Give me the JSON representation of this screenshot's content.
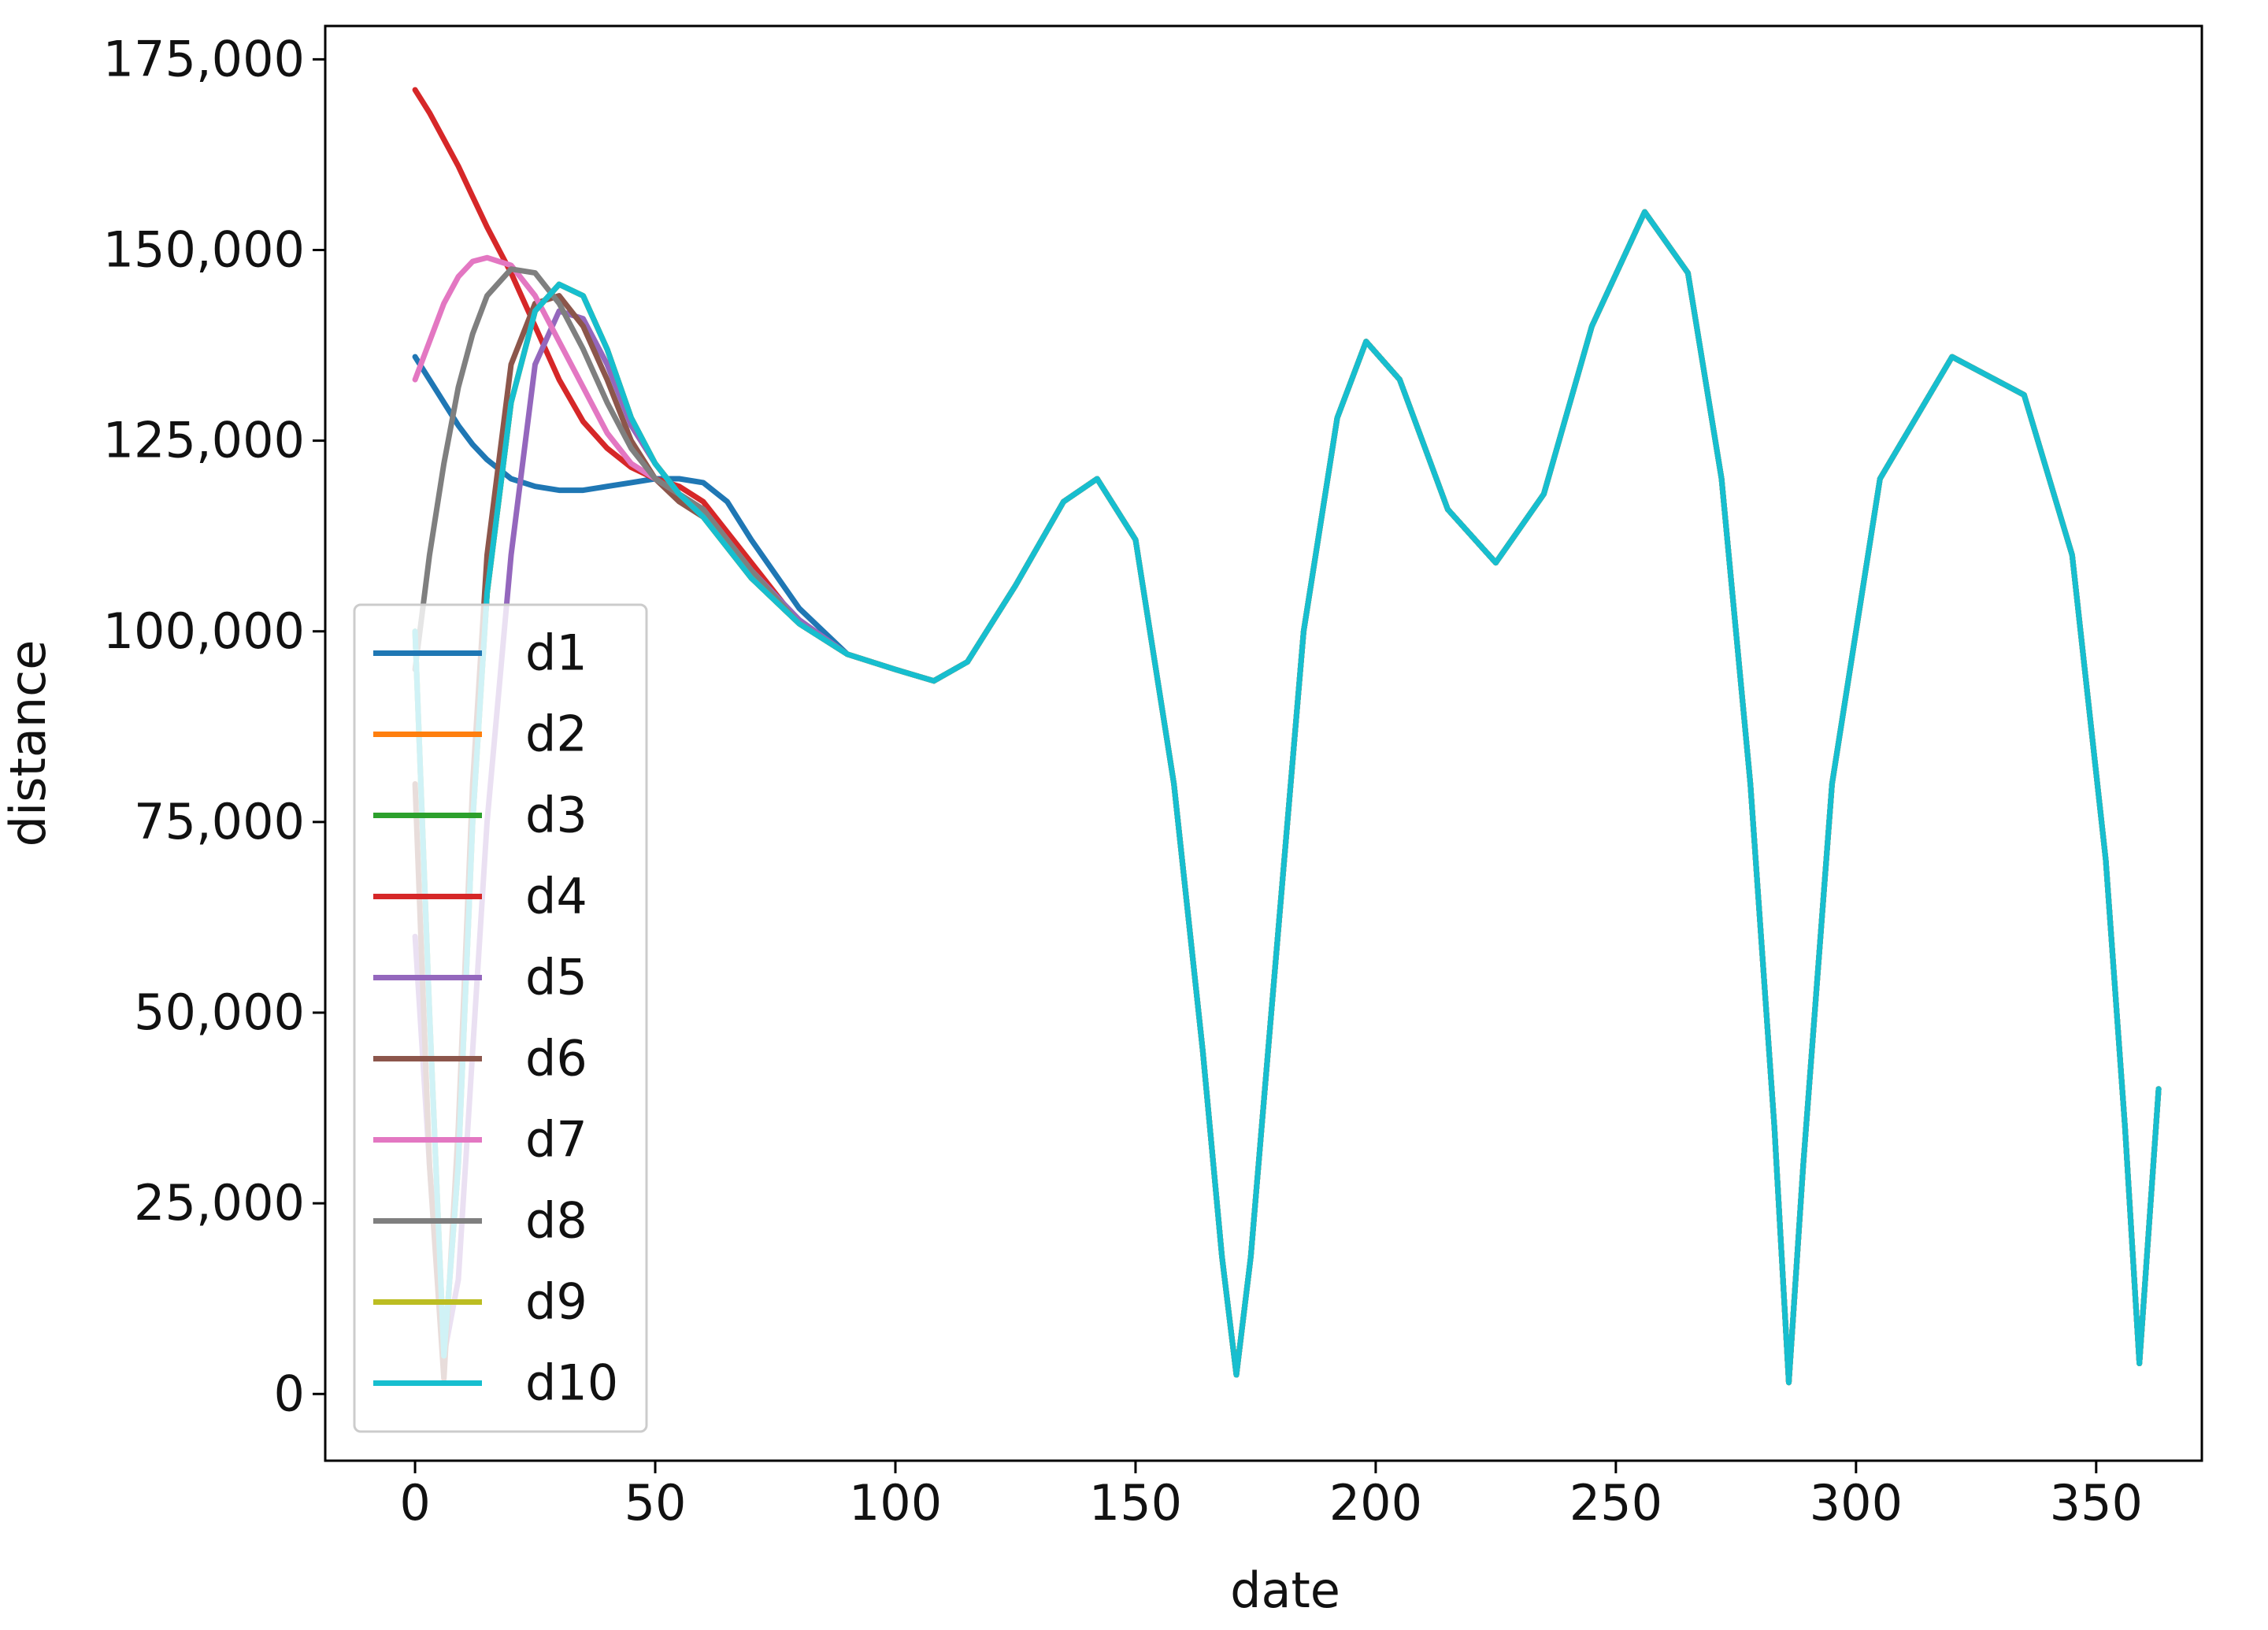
{
  "chart_data": {
    "type": "line",
    "x_label": "date",
    "y_label": "distance",
    "x": [
      0,
      3,
      6,
      9,
      12,
      15,
      20,
      25,
      30,
      35,
      40,
      45,
      50,
      55,
      60,
      65,
      70,
      80,
      90,
      100,
      108,
      115,
      125,
      135,
      142,
      150,
      158,
      164,
      168,
      171,
      174,
      178,
      185,
      192,
      198,
      205,
      215,
      225,
      235,
      245,
      256,
      265,
      272,
      278,
      283,
      286,
      289,
      295,
      305,
      320,
      335,
      345,
      352,
      356,
      359,
      363
    ],
    "series": [
      {
        "name": "d1",
        "color": "#1f77b4",
        "values": [
          136000,
          133000,
          130000,
          127000,
          124500,
          122500,
          120000,
          119000,
          118500,
          118500,
          119000,
          119500,
          120000,
          120000,
          119500,
          117000,
          112000,
          103000,
          97000,
          95000,
          93500,
          96000,
          106000,
          117000,
          120000,
          112000,
          80000,
          45000,
          18000,
          2500,
          18000,
          48000,
          100000,
          128000,
          138000,
          133000,
          116000,
          109000,
          118000,
          140000,
          155000,
          147000,
          120000,
          80000,
          35000,
          1500,
          30000,
          80000,
          120000,
          136000,
          131000,
          110000,
          70000,
          35000,
          4000,
          40000
        ]
      },
      {
        "name": "d2",
        "color": "#ff7f0e",
        "values": [
          100000,
          50000,
          5000,
          30000,
          75000,
          105000,
          130000,
          142000,
          145500,
          144000,
          137000,
          128000,
          122000,
          118000,
          115000,
          111000,
          107000,
          101000,
          97000,
          95000,
          93500,
          96000,
          106000,
          117000,
          120000,
          112000,
          80000,
          45000,
          18000,
          2500,
          18000,
          48000,
          100000,
          128000,
          138000,
          133000,
          116000,
          109000,
          118000,
          140000,
          155000,
          147000,
          120000,
          80000,
          35000,
          1500,
          30000,
          80000,
          120000,
          136000,
          131000,
          110000,
          70000,
          35000,
          4000,
          40000
        ]
      },
      {
        "name": "d3",
        "color": "#2ca02c",
        "values": [
          100000,
          50000,
          5000,
          30000,
          75000,
          105000,
          130000,
          142000,
          145500,
          144000,
          137000,
          128000,
          122000,
          118000,
          115000,
          111000,
          107000,
          101000,
          97000,
          95000,
          93500,
          96000,
          106000,
          117000,
          120000,
          112000,
          80000,
          45000,
          18000,
          2500,
          18000,
          48000,
          100000,
          128000,
          138000,
          133000,
          116000,
          109000,
          118000,
          140000,
          155000,
          147000,
          120000,
          80000,
          35000,
          1500,
          30000,
          80000,
          120000,
          136000,
          131000,
          110000,
          70000,
          35000,
          4000,
          40000
        ]
      },
      {
        "name": "d4",
        "color": "#d62728",
        "values": [
          171000,
          168000,
          164500,
          161000,
          157000,
          153000,
          147000,
          140000,
          133000,
          127500,
          124000,
          121500,
          120000,
          119000,
          117000,
          113000,
          109000,
          101000,
          97000,
          95000,
          93500,
          96000,
          106000,
          117000,
          120000,
          112000,
          80000,
          45000,
          18000,
          2500,
          18000,
          48000,
          100000,
          128000,
          138000,
          133000,
          116000,
          109000,
          118000,
          140000,
          155000,
          147000,
          120000,
          80000,
          35000,
          1500,
          30000,
          80000,
          120000,
          136000,
          131000,
          110000,
          70000,
          35000,
          4000,
          40000
        ]
      },
      {
        "name": "d5",
        "color": "#9467bd",
        "values": [
          60000,
          30000,
          5000,
          15000,
          45000,
          75000,
          110000,
          135000,
          142000,
          141000,
          135000,
          127000,
          122000,
          118000,
          116000,
          112000,
          108000,
          101500,
          97000,
          95000,
          93500,
          96000,
          106000,
          117000,
          120000,
          112000,
          80000,
          45000,
          18000,
          2500,
          18000,
          48000,
          100000,
          128000,
          138000,
          133000,
          116000,
          109000,
          118000,
          140000,
          155000,
          147000,
          120000,
          80000,
          35000,
          1500,
          30000,
          80000,
          120000,
          136000,
          131000,
          110000,
          70000,
          35000,
          4000,
          40000
        ]
      },
      {
        "name": "d6",
        "color": "#8c564b",
        "values": [
          80000,
          30000,
          2000,
          35000,
          80000,
          110000,
          135000,
          143000,
          144000,
          140000,
          133000,
          125000,
          120000,
          117000,
          115000,
          111000,
          107000,
          101000,
          97000,
          95000,
          93500,
          96000,
          106000,
          117000,
          120000,
          112000,
          80000,
          45000,
          18000,
          2500,
          18000,
          48000,
          100000,
          128000,
          138000,
          133000,
          116000,
          109000,
          118000,
          140000,
          155000,
          147000,
          120000,
          80000,
          35000,
          1500,
          30000,
          80000,
          120000,
          136000,
          131000,
          110000,
          70000,
          35000,
          4000,
          40000
        ]
      },
      {
        "name": "d7",
        "color": "#e377c2",
        "values": [
          133000,
          138000,
          143000,
          146500,
          148500,
          149000,
          148000,
          144000,
          138000,
          132000,
          126000,
          122000,
          120000,
          118000,
          116000,
          112000,
          108000,
          101000,
          97000,
          95000,
          93500,
          96000,
          106000,
          117000,
          120000,
          112000,
          80000,
          45000,
          18000,
          2500,
          18000,
          48000,
          100000,
          128000,
          138000,
          133000,
          116000,
          109000,
          118000,
          140000,
          155000,
          147000,
          120000,
          80000,
          35000,
          1500,
          30000,
          80000,
          120000,
          136000,
          131000,
          110000,
          70000,
          35000,
          4000,
          40000
        ]
      },
      {
        "name": "d8",
        "color": "#7f7f7f",
        "values": [
          95000,
          110000,
          122000,
          132000,
          139000,
          144000,
          147500,
          147000,
          143000,
          137000,
          130000,
          124000,
          120000,
          118000,
          116000,
          112000,
          108000,
          101000,
          97000,
          95000,
          93500,
          96000,
          106000,
          117000,
          120000,
          112000,
          80000,
          45000,
          18000,
          2500,
          18000,
          48000,
          100000,
          128000,
          138000,
          133000,
          116000,
          109000,
          118000,
          140000,
          155000,
          147000,
          120000,
          80000,
          35000,
          1500,
          30000,
          80000,
          120000,
          136000,
          131000,
          110000,
          70000,
          35000,
          4000,
          40000
        ]
      },
      {
        "name": "d9",
        "color": "#bcbd22",
        "values": [
          100000,
          50000,
          5000,
          30000,
          75000,
          105000,
          130000,
          142000,
          145500,
          144000,
          137000,
          128000,
          122000,
          118000,
          115000,
          111000,
          107000,
          101000,
          97000,
          95000,
          93500,
          96000,
          106000,
          117000,
          120000,
          112000,
          80000,
          45000,
          18000,
          2500,
          18000,
          48000,
          100000,
          128000,
          138000,
          133000,
          116000,
          109000,
          118000,
          140000,
          155000,
          147000,
          120000,
          80000,
          35000,
          1500,
          30000,
          80000,
          120000,
          136000,
          131000,
          110000,
          70000,
          35000,
          4000,
          40000
        ]
      },
      {
        "name": "d10",
        "color": "#17becf",
        "values": [
          100000,
          50000,
          5000,
          30000,
          75000,
          105000,
          130000,
          142000,
          145500,
          144000,
          137000,
          128000,
          122000,
          118000,
          115000,
          111000,
          107000,
          101000,
          97000,
          95000,
          93500,
          96000,
          106000,
          117000,
          120000,
          112000,
          80000,
          45000,
          18000,
          2500,
          18000,
          48000,
          100000,
          128000,
          138000,
          133000,
          116000,
          109000,
          118000,
          140000,
          155000,
          147000,
          120000,
          80000,
          35000,
          1500,
          30000,
          80000,
          120000,
          136000,
          131000,
          110000,
          70000,
          35000,
          4000,
          40000
        ]
      }
    ],
    "xlim": [
      -18.7,
      372
    ],
    "xticks": [
      0,
      50,
      100,
      150,
      200,
      250,
      300,
      350
    ],
    "ylim": [
      -8750,
      179375
    ],
    "yticks": [
      0,
      {
        "value": 25000,
        "label": "25,000"
      },
      {
        "value": 50000,
        "label": "50,000"
      },
      {
        "value": 75000,
        "label": "75,000"
      },
      {
        "value": 100000,
        "label": "100,000"
      },
      {
        "value": 125000,
        "label": "125,000"
      },
      {
        "value": 150000,
        "label": "150,000"
      },
      {
        "value": 175000,
        "label": "175,000"
      }
    ],
    "legend": "lower left",
    "grid": false
  }
}
